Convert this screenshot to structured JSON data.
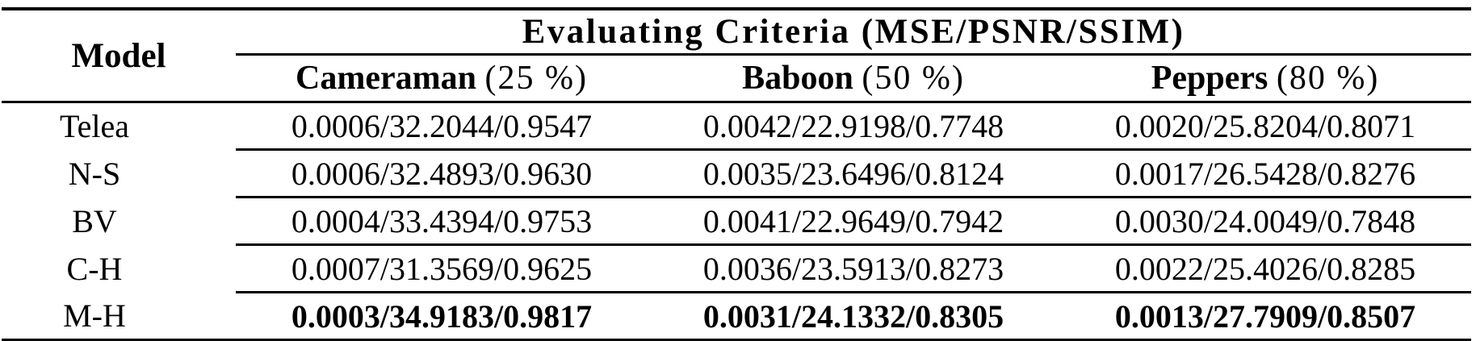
{
  "table": {
    "header": {
      "model_label": "Model",
      "criteria_label": "Evaluating Criteria (MSE/PSNR/SSIM)",
      "columns": [
        {
          "name": "Cameraman",
          "mask": "(25 %)"
        },
        {
          "name": "Baboon",
          "mask": "(50 %)"
        },
        {
          "name": "Peppers",
          "mask": "(80 %)"
        }
      ]
    },
    "rows": [
      {
        "model": "Telea",
        "bold": false,
        "values": [
          "0.0006/32.2044/0.9547",
          "0.0042/22.9198/0.7748",
          "0.0020/25.8204/0.8071"
        ]
      },
      {
        "model": "N-S",
        "bold": false,
        "values": [
          "0.0006/32.4893/0.9630",
          "0.0035/23.6496/0.8124",
          "0.0017/26.5428/0.8276"
        ]
      },
      {
        "model": "BV",
        "bold": false,
        "values": [
          "0.0004/33.4394/0.9753",
          "0.0041/22.9649/0.7942",
          "0.0030/24.0049/0.7848"
        ]
      },
      {
        "model": "C-H",
        "bold": false,
        "values": [
          "0.0007/31.3569/0.9625",
          "0.0036/23.5913/0.8273",
          "0.0022/25.4026/0.8285"
        ]
      },
      {
        "model": "M-H",
        "bold": true,
        "values": [
          "0.0003/34.9183/0.9817",
          "0.0031/24.1332/0.8305",
          "0.0013/27.7909/0.8507"
        ]
      }
    ],
    "colors": {
      "text": "#000000",
      "background": "#ffffff",
      "rule": "#000000"
    }
  }
}
